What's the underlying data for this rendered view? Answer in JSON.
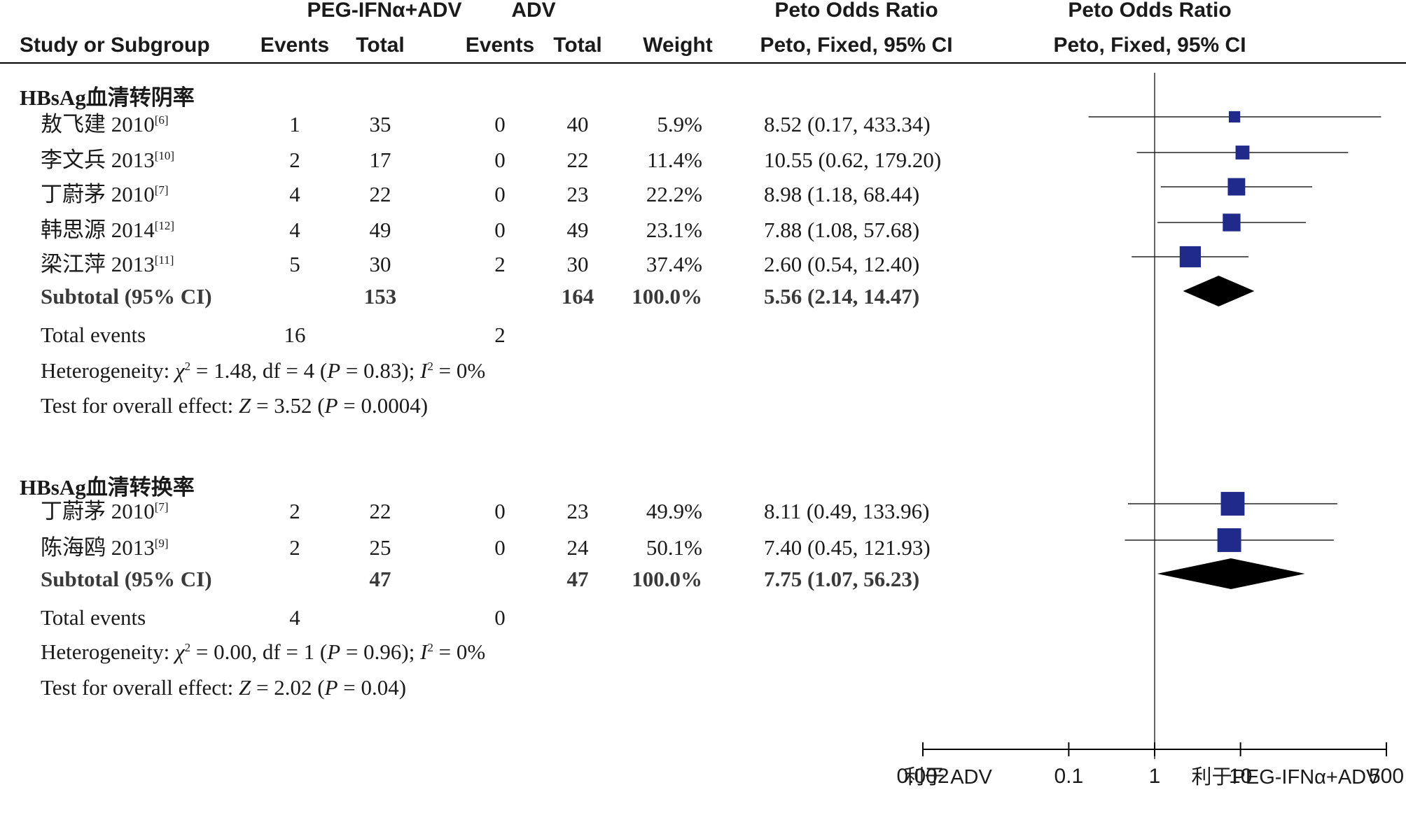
{
  "header": {
    "group1": "PEG-IFNα+ADV",
    "group2": "ADV",
    "or_top": "Peto Odds Ratio",
    "plot_top": "Peto Odds Ratio",
    "study_col": "Study or Subgroup",
    "events1": "Events",
    "total1": "Total",
    "events2": "Events",
    "total2": "Total",
    "weight": "Weight",
    "or_method": "Peto, Fixed, 95% CI",
    "plot_method": "Peto, Fixed, 95% CI"
  },
  "chart_data": {
    "type": "forest",
    "title": "",
    "xscale": "log",
    "xlim": [
      0.002,
      500
    ],
    "xticks": [
      "0.002",
      "0.1",
      "1",
      "10",
      "500"
    ],
    "reference_line": 1,
    "xlabel_left": "利于 ADV",
    "xlabel_right": "利于PEG-IFNα+ADV",
    "colors": {
      "study_marker": "#1f2a8a",
      "diamond": "#000000"
    },
    "subgroups": [
      {
        "name": "HBsAg血清转阴率",
        "studies": [
          {
            "name": "敖飞建 2010",
            "ref": "[6]",
            "e1": "1",
            "t1": "35",
            "e2": "0",
            "t2": "40",
            "weight": "5.9%",
            "ci_text": "8.52 (0.17, 433.34)",
            "or": 8.52,
            "lo": 0.17,
            "hi": 433.34
          },
          {
            "name": "李文兵 2013",
            "ref": "[10]",
            "e1": "2",
            "t1": "17",
            "e2": "0",
            "t2": "22",
            "weight": "11.4%",
            "ci_text": "10.55 (0.62, 179.20)",
            "or": 10.55,
            "lo": 0.62,
            "hi": 179.2
          },
          {
            "name": "丁蔚茅 2010",
            "ref": "[7]",
            "e1": "4",
            "t1": "22",
            "e2": "0",
            "t2": "23",
            "weight": "22.2%",
            "ci_text": "8.98 (1.18, 68.44)",
            "or": 8.98,
            "lo": 1.18,
            "hi": 68.44
          },
          {
            "name": "韩思源 2014",
            "ref": "[12]",
            "e1": "4",
            "t1": "49",
            "e2": "0",
            "t2": "49",
            "weight": "23.1%",
            "ci_text": "7.88 (1.08, 57.68)",
            "or": 7.88,
            "lo": 1.08,
            "hi": 57.68
          },
          {
            "name": "梁江萍 2013",
            "ref": "[11]",
            "e1": "5",
            "t1": "30",
            "e2": "2",
            "t2": "30",
            "weight": "37.4%",
            "ci_text": "2.60 (0.54, 12.40)",
            "or": 2.6,
            "lo": 0.54,
            "hi": 12.4
          }
        ],
        "subtotal": {
          "label": "Subtotal (95% CI)",
          "t1": "153",
          "t2": "164",
          "weight": "100.0%",
          "ci_text": "5.56 (2.14, 14.47)",
          "or": 5.56,
          "lo": 2.14,
          "hi": 14.47
        },
        "total_events": {
          "label": "Total events",
          "e1": "16",
          "e2": "2"
        },
        "het": {
          "prefix": "Heterogeneity: ",
          "chi": "χ",
          "chi_rest": " = 1.48, df = 4 (",
          "p": "P",
          "p_rest": " = 0.83); ",
          "i": "I",
          "i_rest": " = 0%"
        },
        "overall": {
          "prefix": "Test for overall effect: ",
          "z": "Z",
          "z_rest": " = 3.52 (",
          "p": "P",
          "p_rest": " = 0.0004)"
        }
      },
      {
        "name": "HBsAg血清转换率",
        "studies": [
          {
            "name": "丁蔚茅 2010",
            "ref": "[7]",
            "e1": "2",
            "t1": "22",
            "e2": "0",
            "t2": "23",
            "weight": "49.9%",
            "ci_text": "8.11 (0.49, 133.96)",
            "or": 8.11,
            "lo": 0.49,
            "hi": 133.96
          },
          {
            "name": "陈海鸥 2013",
            "ref": "[9]",
            "e1": "2",
            "t1": "25",
            "e2": "0",
            "t2": "24",
            "weight": "50.1%",
            "ci_text": "7.40 (0.45, 121.93)",
            "or": 7.4,
            "lo": 0.45,
            "hi": 121.93
          }
        ],
        "subtotal": {
          "label": "Subtotal (95% CI)",
          "t1": "47",
          "t2": "47",
          "weight": "100.0%",
          "ci_text": "7.75 (1.07, 56.23)",
          "or": 7.75,
          "lo": 1.07,
          "hi": 56.23
        },
        "total_events": {
          "label": "Total events",
          "e1": "4",
          "e2": "0"
        },
        "het": {
          "prefix": "Heterogeneity: ",
          "chi": "χ",
          "chi_rest": " = 0.00, df = 1 (",
          "p": "P",
          "p_rest": " = 0.96); ",
          "i": "I",
          "i_rest": " = 0%"
        },
        "overall": {
          "prefix": "Test for overall effect: ",
          "z": "Z",
          "z_rest": " = 2.02 (",
          "p": "P",
          "p_rest": " = 0.04)"
        }
      }
    ]
  }
}
